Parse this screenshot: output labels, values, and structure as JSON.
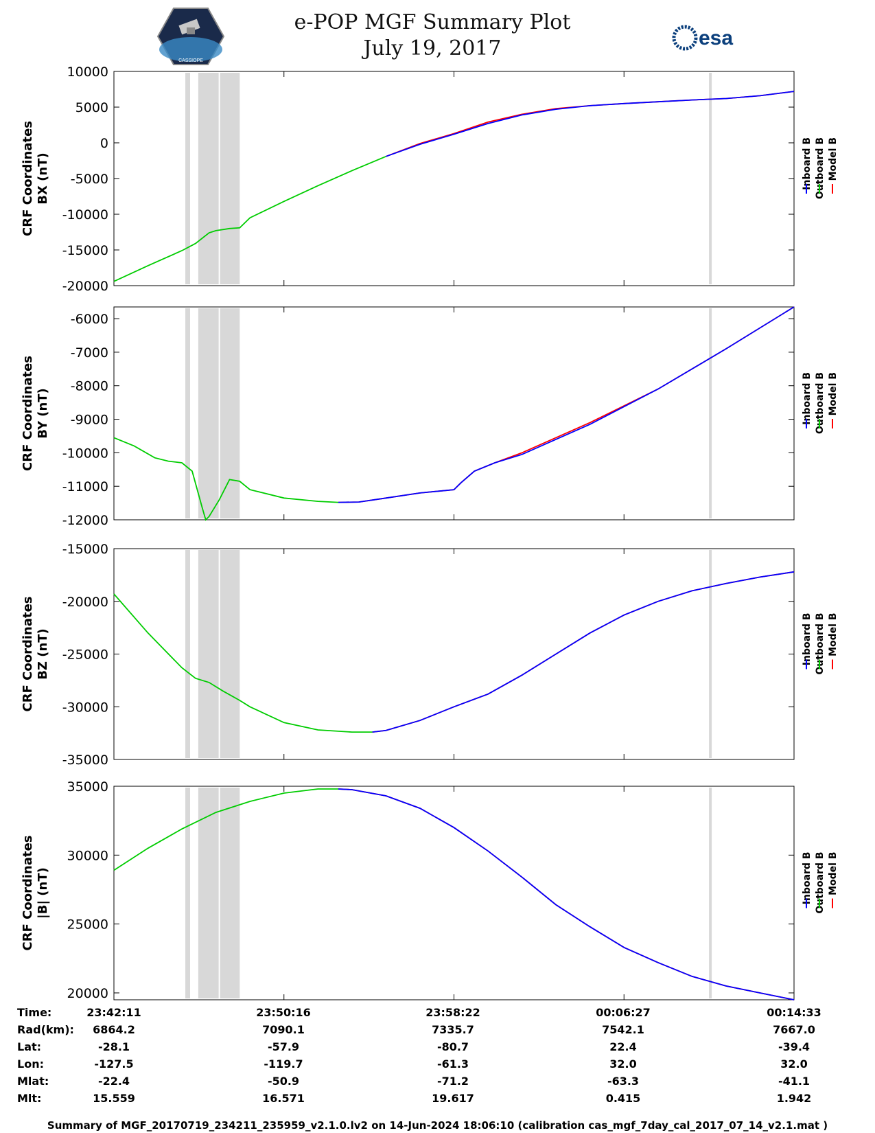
{
  "title": {
    "line1": "e-POP MGF Summary Plot",
    "line2": "July 19, 2017"
  },
  "logos": {
    "left": "CASSIOPE",
    "right": "esa"
  },
  "legend": [
    {
      "label": "Inboard B",
      "color": "#0000ff"
    },
    {
      "label": "Outboard B",
      "color": "#00cc00"
    },
    {
      "label": "Model B",
      "color": "#ff0000"
    }
  ],
  "chart_data": [
    {
      "type": "line",
      "ylabel": [
        "CRF Coordinates",
        "BX (nT)"
      ],
      "ylim": [
        -20000,
        10000
      ],
      "yticks": [
        10000,
        5000,
        0,
        -5000,
        -10000,
        -15000,
        -20000
      ],
      "x": [
        0,
        0.05,
        0.1,
        0.12,
        0.14,
        0.15,
        0.17,
        0.185,
        0.2,
        0.25,
        0.3,
        0.35,
        0.4,
        0.45,
        0.5,
        0.55,
        0.6,
        0.65,
        0.7,
        0.75,
        0.8,
        0.85,
        0.9,
        0.95,
        1.0
      ],
      "series": [
        {
          "name": "Outboard B",
          "color": "#00cc00",
          "x_start": 0,
          "x_end": 0.42,
          "values": [
            -19400,
            -17200,
            -15100,
            -14100,
            -12600,
            -12300,
            -12000,
            -11900,
            -10500,
            -8200,
            -6000,
            -3900,
            -1900,
            null,
            null,
            null,
            null,
            null,
            null,
            null,
            null,
            null,
            null,
            null,
            null
          ]
        },
        {
          "name": "Model B",
          "color": "#ff0000",
          "x_start": 0.4,
          "x_end": 1.0,
          "values": [
            null,
            null,
            null,
            null,
            null,
            null,
            null,
            null,
            null,
            null,
            null,
            null,
            -1900,
            -100,
            1300,
            2900,
            4000,
            4800,
            5200,
            5500,
            5750,
            6000,
            6200,
            6600,
            7200
          ]
        },
        {
          "name": "Inboard B",
          "color": "#0000ff",
          "x_start": 0.4,
          "x_end": 1.0,
          "values": [
            null,
            null,
            null,
            null,
            null,
            null,
            null,
            null,
            null,
            null,
            null,
            null,
            -1900,
            -200,
            1200,
            2700,
            3900,
            4700,
            5200,
            5500,
            5750,
            6000,
            6200,
            6600,
            7200
          ]
        }
      ]
    },
    {
      "type": "line",
      "ylabel": [
        "CRF Coordinates",
        "BY (nT)"
      ],
      "ylim": [
        -12000,
        -5650
      ],
      "yticks": [
        -6000,
        -7000,
        -8000,
        -9000,
        -10000,
        -11000,
        -12000
      ],
      "x": [
        0,
        0.03,
        0.06,
        0.08,
        0.1,
        0.115,
        0.13,
        0.135,
        0.14,
        0.155,
        0.17,
        0.185,
        0.2,
        0.25,
        0.3,
        0.33,
        0.36,
        0.4,
        0.45,
        0.5,
        0.51,
        0.53,
        0.56,
        0.6,
        0.7,
        0.8,
        0.9,
        1.0
      ],
      "series": [
        {
          "name": "Outboard B",
          "color": "#00cc00",
          "x_start": 0,
          "x_end": 0.33,
          "values": [
            -9550,
            -9800,
            -10150,
            -10250,
            -10300,
            -10550,
            -11650,
            -12000,
            -11900,
            -11400,
            -10800,
            -10850,
            -11100,
            -11350,
            -11450,
            -11480,
            null,
            null,
            null,
            null,
            null,
            null,
            null,
            null,
            null,
            null,
            null,
            null
          ]
        },
        {
          "name": "Model B",
          "color": "#ff0000",
          "x_start": 0.33,
          "x_end": 1.0,
          "values": [
            null,
            null,
            null,
            null,
            null,
            null,
            null,
            null,
            null,
            null,
            null,
            null,
            null,
            null,
            null,
            -11480,
            -11470,
            -11350,
            -11200,
            -11100,
            -10900,
            -10550,
            -10300,
            -10000,
            -9100,
            -8100,
            -6900,
            -5650
          ]
        },
        {
          "name": "Inboard B",
          "color": "#0000ff",
          "x_start": 0.33,
          "x_end": 1.0,
          "values": [
            null,
            null,
            null,
            null,
            null,
            null,
            null,
            null,
            null,
            null,
            null,
            null,
            null,
            null,
            null,
            -11480,
            -11470,
            -11350,
            -11200,
            -11100,
            -10900,
            -10550,
            -10300,
            -10050,
            -9150,
            -8100,
            -6900,
            -5650
          ]
        }
      ]
    },
    {
      "type": "line",
      "ylabel": [
        "CRF Coordinates",
        "BZ (nT)"
      ],
      "ylim": [
        -35000,
        -15000
      ],
      "yticks": [
        -15000,
        -20000,
        -25000,
        -30000,
        -35000
      ],
      "x": [
        0,
        0.05,
        0.1,
        0.12,
        0.14,
        0.16,
        0.185,
        0.2,
        0.25,
        0.3,
        0.35,
        0.38,
        0.4,
        0.45,
        0.5,
        0.55,
        0.6,
        0.65,
        0.7,
        0.75,
        0.8,
        0.85,
        0.9,
        0.95,
        1.0
      ],
      "series": [
        {
          "name": "Outboard B",
          "color": "#00cc00",
          "x_start": 0,
          "x_end": 0.38,
          "values": [
            -19300,
            -23000,
            -26300,
            -27300,
            -27700,
            -28500,
            -29400,
            -30000,
            -31500,
            -32200,
            -32400,
            -32400,
            null,
            null,
            null,
            null,
            null,
            null,
            null,
            null,
            null,
            null,
            null,
            null,
            null
          ]
        },
        {
          "name": "Model B",
          "color": "#ff0000",
          "x_start": 0.38,
          "x_end": 1.0,
          "values": [
            null,
            null,
            null,
            null,
            null,
            null,
            null,
            null,
            null,
            null,
            null,
            -32400,
            -32250,
            -31300,
            -30000,
            -28800,
            -27000,
            -25000,
            -23000,
            -21300,
            -20000,
            -19000,
            -18300,
            -17700,
            -17200
          ]
        },
        {
          "name": "Inboard B",
          "color": "#0000ff",
          "x_start": 0.38,
          "x_end": 1.0,
          "values": [
            null,
            null,
            null,
            null,
            null,
            null,
            null,
            null,
            null,
            null,
            null,
            -32400,
            -32250,
            -31300,
            -30000,
            -28800,
            -27000,
            -25000,
            -23000,
            -21300,
            -20000,
            -19000,
            -18300,
            -17700,
            -17200
          ]
        }
      ]
    },
    {
      "type": "line",
      "ylabel": [
        "CRF Coordinates",
        "|B| (nT)"
      ],
      "ylim": [
        19500,
        35000
      ],
      "yticks": [
        35000,
        30000,
        25000,
        20000
      ],
      "x": [
        0,
        0.05,
        0.1,
        0.15,
        0.2,
        0.25,
        0.3,
        0.33,
        0.35,
        0.4,
        0.45,
        0.5,
        0.55,
        0.6,
        0.65,
        0.7,
        0.75,
        0.8,
        0.85,
        0.9,
        0.95,
        1.0
      ],
      "series": [
        {
          "name": "Outboard B",
          "color": "#00cc00",
          "x_start": 0,
          "x_end": 0.33,
          "values": [
            28900,
            30500,
            31900,
            33100,
            33900,
            34500,
            34800,
            34800,
            null,
            null,
            null,
            null,
            null,
            null,
            null,
            null,
            null,
            null,
            null,
            null,
            null,
            null
          ]
        },
        {
          "name": "Model B",
          "color": "#ff0000",
          "x_start": 0.33,
          "x_end": 1.0,
          "values": [
            null,
            null,
            null,
            null,
            null,
            null,
            null,
            34800,
            34750,
            34300,
            33400,
            32000,
            30300,
            28400,
            26400,
            24800,
            23300,
            22200,
            21200,
            20500,
            20000,
            19500
          ]
        },
        {
          "name": "Inboard B",
          "color": "#0000ff",
          "x_start": 0.33,
          "x_end": 1.0,
          "values": [
            null,
            null,
            null,
            null,
            null,
            null,
            null,
            34800,
            34750,
            34300,
            33400,
            32000,
            30300,
            28400,
            26400,
            24800,
            23300,
            22200,
            21200,
            20500,
            20000,
            19500
          ]
        }
      ]
    }
  ],
  "gaps": [
    [
      0.105,
      0.112
    ],
    [
      0.124,
      0.154
    ],
    [
      0.156,
      0.185
    ],
    [
      0.875,
      0.879
    ]
  ],
  "footer": {
    "labels": [
      "Time:",
      "Rad(km):",
      "Lat:",
      "Lon:",
      "Mlat:",
      "Mlt:"
    ],
    "columns": [
      [
        "23:42:11",
        "6864.2",
        "-28.1",
        "-127.5",
        "-22.4",
        "15.559"
      ],
      [
        "23:50:16",
        "7090.1",
        "-57.9",
        "-119.7",
        "-50.9",
        "16.571"
      ],
      [
        "23:58:22",
        "7335.7",
        "-80.7",
        "-61.3",
        "-71.2",
        "19.617"
      ],
      [
        "00:06:27",
        "7542.1",
        "22.4",
        "32.0",
        "-63.3",
        "0.415"
      ],
      [
        "00:14:33",
        "7667.0",
        "-39.4",
        "32.0",
        "-41.1",
        "1.942"
      ]
    ],
    "summary": "Summary of MGF_20170719_234211_235959_v2.1.0.lv2 on 14-Jun-2024 18:06:10 (calibration cas_mgf_7day_cal_2017_07_14_v2.1.mat )"
  }
}
